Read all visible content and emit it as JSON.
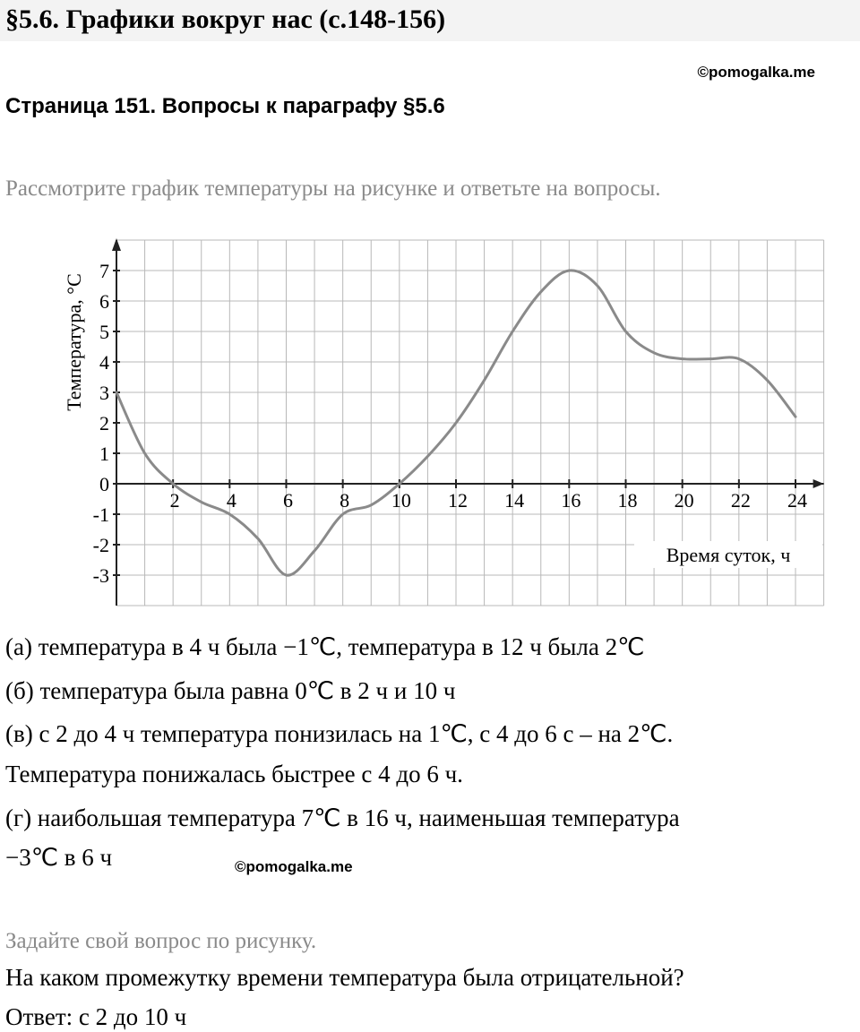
{
  "header": {
    "title": "§5.6. Графики вокруг нас (с.148-156)"
  },
  "watermarks": [
    "©pomogalka.me",
    "©pomogalka.me"
  ],
  "subtitle": "Страница 151. Вопросы к параграфу §5.6",
  "instruction": "Рассмотрите график температуры на рисунке и ответьте на вопросы.",
  "chart_data": {
    "type": "line",
    "y_label": "Температура, °C",
    "x_label": "Время суток, ч",
    "x": [
      0,
      1,
      2,
      3,
      4,
      5,
      6,
      7,
      8,
      9,
      10,
      11,
      12,
      13,
      14,
      15,
      16,
      17,
      18,
      19,
      20,
      21,
      22,
      23,
      24
    ],
    "values": [
      3,
      1,
      0,
      -0.6,
      -1,
      -1.8,
      -3,
      -2.2,
      -1,
      -0.7,
      0,
      0.9,
      2,
      3.4,
      5,
      6.3,
      7,
      6.5,
      5,
      4.3,
      4.1,
      4.1,
      4.1,
      3.4,
      2.2
    ],
    "color": "#8a8a8a",
    "xlim": [
      0,
      25
    ],
    "ylim": [
      -4,
      8
    ],
    "xticks": [
      2,
      4,
      6,
      8,
      10,
      12,
      14,
      16,
      18,
      20,
      22,
      24
    ],
    "yticks": [
      -3,
      -2,
      -1,
      0,
      1,
      2,
      3,
      4,
      5,
      6,
      7
    ],
    "grid": true
  },
  "answers": [
    "(а) температура в 4 ч была −1℃, температура в 12 ч была 2℃",
    "(б) температура была равна 0℃ в 2 ч и 10 ч",
    "(в) с 2 до 4 ч температура понизилась на 1℃, с 4 до 6 с – на 2℃.",
    "Температура понижалась быстрее с 4 до 6 ч.",
    "(г) наибольшая температура 7℃ в 16 ч, наименьшая температура",
    "−3℃ в 6 ч"
  ],
  "prompt": "Задайте свой вопрос по рисунку.",
  "question": "На каком промежутку времени температура была отрицательной?",
  "answer": "Ответ: с 2 до 10 ч"
}
